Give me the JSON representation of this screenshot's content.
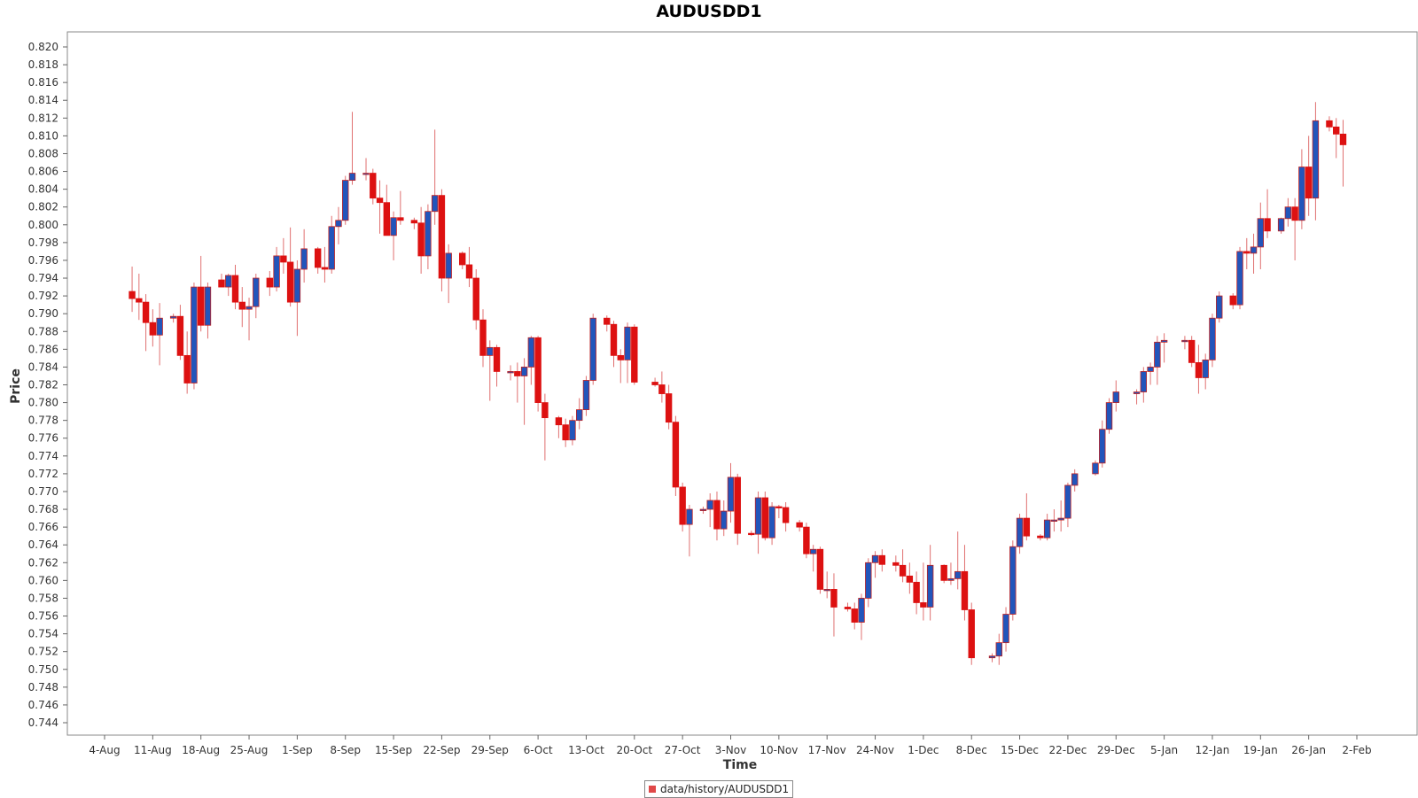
{
  "chart_data": {
    "type": "candlestick",
    "title": "AUDUSDD1",
    "xlabel": "Time",
    "ylabel": "Price",
    "legend": "data/history/AUDUSDD1",
    "legend_position": "bottom",
    "ylim": [
      0.7435,
      0.8218
    ],
    "y_ticks": [
      "0.744",
      "0.746",
      "0.748",
      "0.750",
      "0.752",
      "0.754",
      "0.756",
      "0.758",
      "0.760",
      "0.762",
      "0.764",
      "0.766",
      "0.768",
      "0.770",
      "0.772",
      "0.774",
      "0.776",
      "0.778",
      "0.780",
      "0.782",
      "0.784",
      "0.786",
      "0.788",
      "0.790",
      "0.792",
      "0.794",
      "0.796",
      "0.798",
      "0.800",
      "0.802",
      "0.804",
      "0.806",
      "0.808",
      "0.810",
      "0.812",
      "0.814",
      "0.816",
      "0.818",
      "0.820"
    ],
    "x_ticks": [
      "4-Aug",
      "11-Aug",
      "18-Aug",
      "25-Aug",
      "1-Sep",
      "8-Sep",
      "15-Sep",
      "22-Sep",
      "29-Sep",
      "6-Oct",
      "13-Oct",
      "20-Oct",
      "27-Oct",
      "3-Nov",
      "10-Nov",
      "17-Nov",
      "24-Nov",
      "1-Dec",
      "8-Dec",
      "15-Dec",
      "22-Dec",
      "29-Dec",
      "5-Jan",
      "12-Jan",
      "19-Jan",
      "26-Jan",
      "2-Feb"
    ],
    "up_color": "#2255bb",
    "down_color": "#dd1111",
    "wick_color": "#e07070",
    "grid": false,
    "columns": [
      "date",
      "open",
      "high",
      "low",
      "close"
    ],
    "candles": [
      [
        "2022-08-08",
        0.7925,
        0.7953,
        0.7902,
        0.7917
      ],
      [
        "2022-08-09",
        0.7917,
        0.7945,
        0.7893,
        0.7913
      ],
      [
        "2022-08-10",
        0.7913,
        0.7922,
        0.7858,
        0.789
      ],
      [
        "2022-08-11",
        0.789,
        0.7905,
        0.7863,
        0.7876
      ],
      [
        "2022-08-12",
        0.7876,
        0.7912,
        0.7842,
        0.7895
      ],
      [
        "2022-08-14",
        0.7895,
        0.79,
        0.789,
        0.7897
      ],
      [
        "2022-08-15",
        0.7897,
        0.791,
        0.7848,
        0.7853
      ],
      [
        "2022-08-16",
        0.7853,
        0.788,
        0.781,
        0.7822
      ],
      [
        "2022-08-17",
        0.7822,
        0.7935,
        0.7815,
        0.793
      ],
      [
        "2022-08-18",
        0.793,
        0.7965,
        0.788,
        0.7887
      ],
      [
        "2022-08-19",
        0.7887,
        0.7935,
        0.7872,
        0.793
      ],
      [
        "2022-08-21",
        0.7938,
        0.7945,
        0.793,
        0.793
      ],
      [
        "2022-08-22",
        0.793,
        0.7945,
        0.792,
        0.7943
      ],
      [
        "2022-08-23",
        0.7943,
        0.7955,
        0.7905,
        0.7913
      ],
      [
        "2022-08-24",
        0.7913,
        0.793,
        0.7885,
        0.7905
      ],
      [
        "2022-08-25",
        0.7905,
        0.7918,
        0.787,
        0.7908
      ],
      [
        "2022-08-26",
        0.7908,
        0.7945,
        0.7895,
        0.794
      ],
      [
        "2022-08-28",
        0.794,
        0.7948,
        0.792,
        0.793
      ],
      [
        "2022-08-29",
        0.793,
        0.7975,
        0.7925,
        0.7965
      ],
      [
        "2022-08-30",
        0.7965,
        0.7985,
        0.7945,
        0.7958
      ],
      [
        "2022-08-31",
        0.7958,
        0.7997,
        0.7908,
        0.7913
      ],
      [
        "2022-09-01",
        0.7913,
        0.796,
        0.7875,
        0.795
      ],
      [
        "2022-09-02",
        0.795,
        0.7995,
        0.7935,
        0.7973
      ],
      [
        "2022-09-04",
        0.7973,
        0.7975,
        0.7945,
        0.7952
      ],
      [
        "2022-09-05",
        0.7952,
        0.7975,
        0.7935,
        0.795
      ],
      [
        "2022-09-06",
        0.795,
        0.801,
        0.7945,
        0.7998
      ],
      [
        "2022-09-07",
        0.7998,
        0.802,
        0.7978,
        0.8005
      ],
      [
        "2022-09-08",
        0.8005,
        0.8055,
        0.8,
        0.805
      ],
      [
        "2022-09-09",
        0.805,
        0.8127,
        0.8045,
        0.8058
      ],
      [
        "2022-09-11",
        0.8058,
        0.8075,
        0.805,
        0.8058
      ],
      [
        "2022-09-12",
        0.8058,
        0.8063,
        0.8023,
        0.803
      ],
      [
        "2022-09-13",
        0.803,
        0.805,
        0.799,
        0.8025
      ],
      [
        "2022-09-14",
        0.8025,
        0.8045,
        0.7988,
        0.7988
      ],
      [
        "2022-09-15",
        0.7988,
        0.8015,
        0.796,
        0.8008
      ],
      [
        "2022-09-16",
        0.8008,
        0.8038,
        0.8,
        0.8005
      ],
      [
        "2022-09-18",
        0.8005,
        0.8008,
        0.7995,
        0.8002
      ],
      [
        "2022-09-19",
        0.8002,
        0.802,
        0.7945,
        0.7965
      ],
      [
        "2022-09-20",
        0.7965,
        0.8023,
        0.795,
        0.8015
      ],
      [
        "2022-09-21",
        0.8015,
        0.8107,
        0.8,
        0.8033
      ],
      [
        "2022-09-22",
        0.8033,
        0.804,
        0.7925,
        0.794
      ],
      [
        "2022-09-23",
        0.794,
        0.7978,
        0.7912,
        0.7968
      ],
      [
        "2022-09-25",
        0.7968,
        0.797,
        0.795,
        0.7955
      ],
      [
        "2022-09-26",
        0.7955,
        0.7975,
        0.793,
        0.794
      ],
      [
        "2022-09-27",
        0.794,
        0.795,
        0.7882,
        0.7893
      ],
      [
        "2022-09-28",
        0.7893,
        0.7905,
        0.784,
        0.7853
      ],
      [
        "2022-09-29",
        0.7853,
        0.787,
        0.7802,
        0.7862
      ],
      [
        "2022-09-30",
        0.7862,
        0.7865,
        0.7818,
        0.7835
      ],
      [
        "2022-10-02",
        0.7835,
        0.7842,
        0.7825,
        0.7835
      ],
      [
        "2022-10-03",
        0.7835,
        0.7845,
        0.78,
        0.783
      ],
      [
        "2022-10-04",
        0.783,
        0.785,
        0.7775,
        0.784
      ],
      [
        "2022-10-05",
        0.784,
        0.7875,
        0.782,
        0.7873
      ],
      [
        "2022-10-06",
        0.7873,
        0.7875,
        0.779,
        0.78
      ],
      [
        "2022-10-07",
        0.78,
        0.781,
        0.7735,
        0.7783
      ],
      [
        "2022-10-09",
        0.7783,
        0.7785,
        0.776,
        0.7775
      ],
      [
        "2022-10-10",
        0.7775,
        0.7782,
        0.775,
        0.7758
      ],
      [
        "2022-10-11",
        0.7758,
        0.7785,
        0.7752,
        0.778
      ],
      [
        "2022-10-12",
        0.778,
        0.7805,
        0.777,
        0.7792
      ],
      [
        "2022-10-13",
        0.7792,
        0.783,
        0.7785,
        0.7825
      ],
      [
        "2022-10-14",
        0.7825,
        0.79,
        0.782,
        0.7895
      ],
      [
        "2022-10-16",
        0.7895,
        0.7898,
        0.788,
        0.7888
      ],
      [
        "2022-10-17",
        0.7888,
        0.7892,
        0.784,
        0.7853
      ],
      [
        "2022-10-18",
        0.7853,
        0.786,
        0.7822,
        0.7848
      ],
      [
        "2022-10-19",
        0.7848,
        0.789,
        0.7822,
        0.7885
      ],
      [
        "2022-10-20",
        0.7885,
        0.7888,
        0.782,
        0.7823
      ],
      [
        "2022-10-23",
        0.7823,
        0.7828,
        0.7818,
        0.782
      ],
      [
        "2022-10-24",
        0.782,
        0.7835,
        0.78,
        0.781
      ],
      [
        "2022-10-25",
        0.781,
        0.782,
        0.777,
        0.7778
      ],
      [
        "2022-10-26",
        0.7778,
        0.7785,
        0.7695,
        0.7705
      ],
      [
        "2022-10-27",
        0.7705,
        0.771,
        0.7655,
        0.7663
      ],
      [
        "2022-10-28",
        0.7663,
        0.7685,
        0.7627,
        0.768
      ],
      [
        "2022-10-30",
        0.768,
        0.7683,
        0.7675,
        0.768
      ],
      [
        "2022-10-31",
        0.768,
        0.7698,
        0.766,
        0.769
      ],
      [
        "2022-11-01",
        0.769,
        0.77,
        0.7645,
        0.7658
      ],
      [
        "2022-11-02",
        0.7658,
        0.769,
        0.765,
        0.7678
      ],
      [
        "2022-11-03",
        0.7678,
        0.7732,
        0.7665,
        0.7716
      ],
      [
        "2022-11-04",
        0.7716,
        0.772,
        0.764,
        0.7653
      ],
      [
        "2022-11-06",
        0.7653,
        0.7656,
        0.765,
        0.7652
      ],
      [
        "2022-11-07",
        0.7652,
        0.77,
        0.763,
        0.7693
      ],
      [
        "2022-11-08",
        0.7693,
        0.77,
        0.7645,
        0.7648
      ],
      [
        "2022-11-09",
        0.7648,
        0.7688,
        0.764,
        0.7683
      ],
      [
        "2022-11-10",
        0.7683,
        0.7685,
        0.767,
        0.7682
      ],
      [
        "2022-11-11",
        0.7682,
        0.7688,
        0.7655,
        0.7665
      ],
      [
        "2022-11-13",
        0.7665,
        0.7668,
        0.7655,
        0.766
      ],
      [
        "2022-11-14",
        0.766,
        0.7665,
        0.7625,
        0.763
      ],
      [
        "2022-11-15",
        0.763,
        0.764,
        0.761,
        0.7635
      ],
      [
        "2022-11-16",
        0.7635,
        0.7638,
        0.7585,
        0.759
      ],
      [
        "2022-11-17",
        0.759,
        0.761,
        0.758,
        0.759
      ],
      [
        "2022-11-18",
        0.759,
        0.7608,
        0.7537,
        0.757
      ],
      [
        "2022-11-20",
        0.757,
        0.7575,
        0.7565,
        0.7568
      ],
      [
        "2022-11-21",
        0.7568,
        0.7575,
        0.7545,
        0.7553
      ],
      [
        "2022-11-22",
        0.7553,
        0.7585,
        0.7533,
        0.758
      ],
      [
        "2022-11-23",
        0.758,
        0.7625,
        0.757,
        0.762
      ],
      [
        "2022-11-24",
        0.762,
        0.7633,
        0.7603,
        0.7628
      ],
      [
        "2022-11-25",
        0.7628,
        0.7635,
        0.761,
        0.7618
      ],
      [
        "2022-11-27",
        0.762,
        0.7628,
        0.761,
        0.7617
      ],
      [
        "2022-11-28",
        0.7617,
        0.7635,
        0.7598,
        0.7605
      ],
      [
        "2022-11-29",
        0.7605,
        0.762,
        0.7585,
        0.7598
      ],
      [
        "2022-11-30",
        0.7598,
        0.761,
        0.7562,
        0.7575
      ],
      [
        "2022-12-01",
        0.7575,
        0.762,
        0.7555,
        0.757
      ],
      [
        "2022-12-02",
        0.757,
        0.764,
        0.7555,
        0.7617
      ],
      [
        "2022-12-04",
        0.7617,
        0.7618,
        0.7597,
        0.76
      ],
      [
        "2022-12-05",
        0.76,
        0.762,
        0.7595,
        0.7602
      ],
      [
        "2022-12-06",
        0.7602,
        0.7655,
        0.759,
        0.761
      ],
      [
        "2022-12-07",
        0.761,
        0.764,
        0.7555,
        0.7567
      ],
      [
        "2022-12-08",
        0.7567,
        0.7575,
        0.7505,
        0.7513
      ],
      [
        "2022-12-11",
        0.7513,
        0.7518,
        0.7508,
        0.7515
      ],
      [
        "2022-12-12",
        0.7515,
        0.754,
        0.7505,
        0.753
      ],
      [
        "2022-12-13",
        0.753,
        0.757,
        0.752,
        0.7562
      ],
      [
        "2022-12-14",
        0.7562,
        0.7645,
        0.7555,
        0.7638
      ],
      [
        "2022-12-15",
        0.7638,
        0.7675,
        0.763,
        0.767
      ],
      [
        "2022-12-16",
        0.767,
        0.7698,
        0.7645,
        0.765
      ],
      [
        "2022-12-18",
        0.765,
        0.7652,
        0.7645,
        0.7648
      ],
      [
        "2022-12-19",
        0.7648,
        0.7675,
        0.7645,
        0.7668
      ],
      [
        "2022-12-20",
        0.7668,
        0.768,
        0.7655,
        0.7668
      ],
      [
        "2022-12-21",
        0.7668,
        0.769,
        0.7655,
        0.767
      ],
      [
        "2022-12-22",
        0.767,
        0.771,
        0.766,
        0.7707
      ],
      [
        "2022-12-23",
        0.7707,
        0.7725,
        0.77,
        0.772
      ],
      [
        "2022-12-26",
        0.772,
        0.7735,
        0.7718,
        0.7732
      ],
      [
        "2022-12-27",
        0.7732,
        0.778,
        0.7727,
        0.777
      ],
      [
        "2022-12-28",
        0.777,
        0.7805,
        0.7765,
        0.78
      ],
      [
        "2022-12-29",
        0.78,
        0.7825,
        0.779,
        0.7812
      ],
      [
        "2023-01-01",
        0.781,
        0.7815,
        0.7798,
        0.7812
      ],
      [
        "2023-01-02",
        0.7812,
        0.784,
        0.78,
        0.7835
      ],
      [
        "2023-01-03",
        0.7835,
        0.7845,
        0.782,
        0.784
      ],
      [
        "2023-01-04",
        0.784,
        0.7875,
        0.782,
        0.7868
      ],
      [
        "2023-01-05",
        0.7868,
        0.7878,
        0.7845,
        0.787
      ],
      [
        "2023-01-08",
        0.787,
        0.7875,
        0.786,
        0.787
      ],
      [
        "2023-01-09",
        0.787,
        0.7875,
        0.784,
        0.7845
      ],
      [
        "2023-01-10",
        0.7845,
        0.7865,
        0.781,
        0.7828
      ],
      [
        "2023-01-11",
        0.7828,
        0.7855,
        0.7815,
        0.7848
      ],
      [
        "2023-01-12",
        0.7848,
        0.79,
        0.784,
        0.7895
      ],
      [
        "2023-01-13",
        0.7895,
        0.7925,
        0.789,
        0.792
      ],
      [
        "2023-01-15",
        0.792,
        0.7923,
        0.7905,
        0.791
      ],
      [
        "2023-01-16",
        0.791,
        0.7975,
        0.7905,
        0.797
      ],
      [
        "2023-01-17",
        0.797,
        0.7985,
        0.795,
        0.7968
      ],
      [
        "2023-01-18",
        0.7968,
        0.799,
        0.7945,
        0.7975
      ],
      [
        "2023-01-19",
        0.7975,
        0.8025,
        0.795,
        0.8007
      ],
      [
        "2023-01-20",
        0.8007,
        0.804,
        0.7985,
        0.7993
      ],
      [
        "2023-01-22",
        0.7993,
        0.8008,
        0.799,
        0.8007
      ],
      [
        "2023-01-23",
        0.8007,
        0.803,
        0.7998,
        0.802
      ],
      [
        "2023-01-24",
        0.802,
        0.803,
        0.796,
        0.8005
      ],
      [
        "2023-01-25",
        0.8005,
        0.8085,
        0.7995,
        0.8065
      ],
      [
        "2023-01-26",
        0.8065,
        0.81,
        0.801,
        0.803
      ],
      [
        "2023-01-27",
        0.803,
        0.8138,
        0.8005,
        0.8117
      ],
      [
        "2023-01-29",
        0.8117,
        0.8122,
        0.8105,
        0.811
      ],
      [
        "2023-01-30",
        0.811,
        0.812,
        0.8075,
        0.8102
      ],
      [
        "2023-01-31",
        0.8102,
        0.8118,
        0.8043,
        0.809
      ]
    ]
  }
}
